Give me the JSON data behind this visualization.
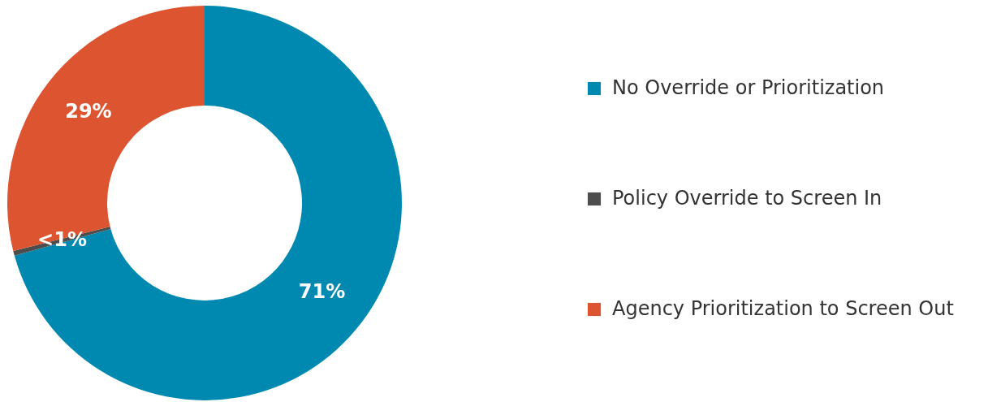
{
  "chart_data": {
    "type": "donut",
    "categories": [
      "No Override or Prioritization",
      "Policy Override to Screen In",
      "Agency Prioritization to Screen Out"
    ],
    "values": [
      70.7,
      0.4,
      28.9
    ],
    "colors": [
      "#0089b0",
      "#4d4d4d",
      "#dc5530"
    ],
    "value_labels": [
      "71%",
      "<1%",
      "29%"
    ],
    "legend": "right"
  }
}
